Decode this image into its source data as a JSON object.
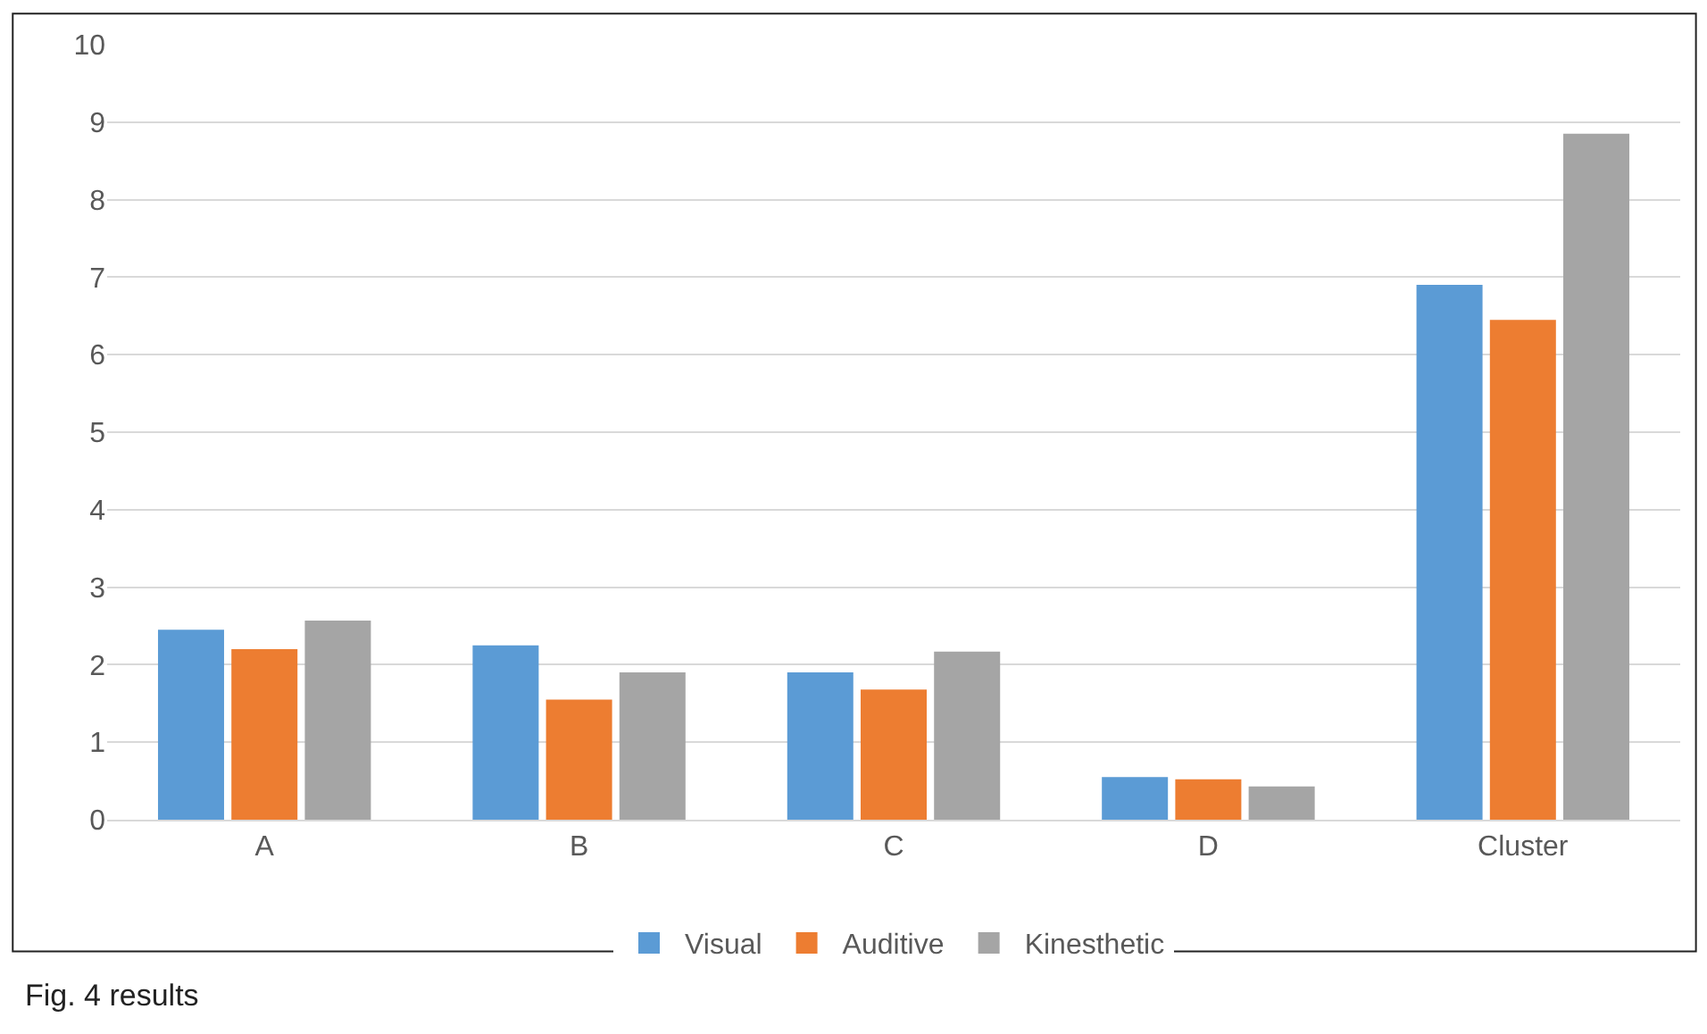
{
  "chart_data": {
    "type": "bar",
    "categories": [
      "A",
      "B",
      "C",
      "D",
      "Cluster"
    ],
    "series": [
      {
        "name": "Visual",
        "color": "#5b9bd5",
        "values": [
          2.45,
          2.25,
          1.9,
          0.55,
          6.9
        ]
      },
      {
        "name": "Auditive",
        "color": "#ed7d31",
        "values": [
          2.2,
          1.55,
          1.68,
          0.52,
          6.45
        ]
      },
      {
        "name": "Kinesthetic",
        "color": "#a5a5a5",
        "values": [
          2.57,
          1.9,
          2.17,
          0.43,
          8.85
        ]
      }
    ],
    "ylim": [
      0,
      10
    ],
    "yticks": [
      0,
      1,
      2,
      3,
      4,
      5,
      6,
      7,
      8,
      9,
      10
    ],
    "grid": "y",
    "legend": "bottom",
    "annotations": [
      "Fig. 4 results"
    ]
  }
}
